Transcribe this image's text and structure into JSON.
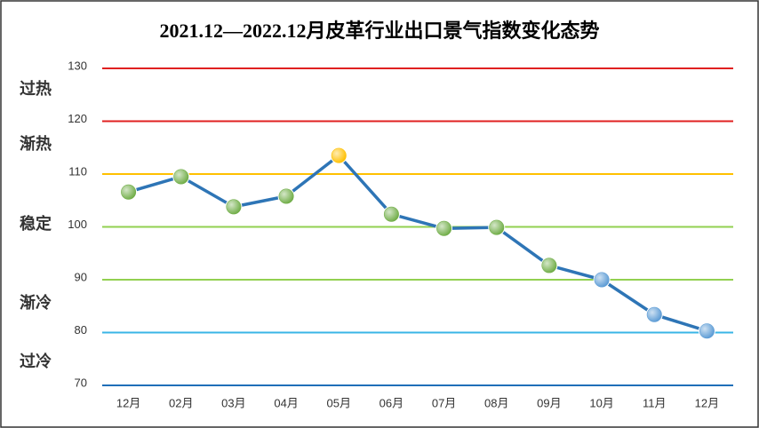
{
  "chart_data": {
    "type": "line",
    "title": "2021.12—2022.12月皮革行业出口景气指数变化态势",
    "categories": [
      "12月",
      "02月",
      "03月",
      "04月",
      "05月",
      "06月",
      "07月",
      "08月",
      "09月",
      "10月",
      "11月",
      "12月"
    ],
    "series": [
      {
        "color": "#2e75b6",
        "values": [
          106.6,
          109.5,
          103.8,
          105.8,
          113.5,
          102.4,
          99.7,
          99.9,
          92.7,
          90.0,
          83.4,
          80.3
        ],
        "point_colors": [
          "#70ad47",
          "#70ad47",
          "#70ad47",
          "#70ad47",
          "#ffc000",
          "#70ad47",
          "#70ad47",
          "#70ad47",
          "#70ad47",
          "#5b9bd5",
          "#5b9bd5",
          "#5b9bd5"
        ]
      }
    ],
    "ylim": [
      70,
      130
    ],
    "yticks": [
      70,
      80,
      90,
      100,
      110,
      120,
      130
    ],
    "ytick_line_colors": [
      "#1f6fb8",
      "#3ab5e6",
      "#92d050",
      "#92d050",
      "#ffc000",
      "#e02020",
      "#e02020"
    ],
    "zones": [
      {
        "label": "过热",
        "color": "#c00000"
      },
      {
        "label": "渐热",
        "color": "#ffc000"
      },
      {
        "label": "稳定",
        "color": "#92d050"
      },
      {
        "label": "渐冷",
        "color": "#2eb4e6"
      },
      {
        "label": "过冷",
        "color": "#1f6fb8"
      }
    ]
  }
}
